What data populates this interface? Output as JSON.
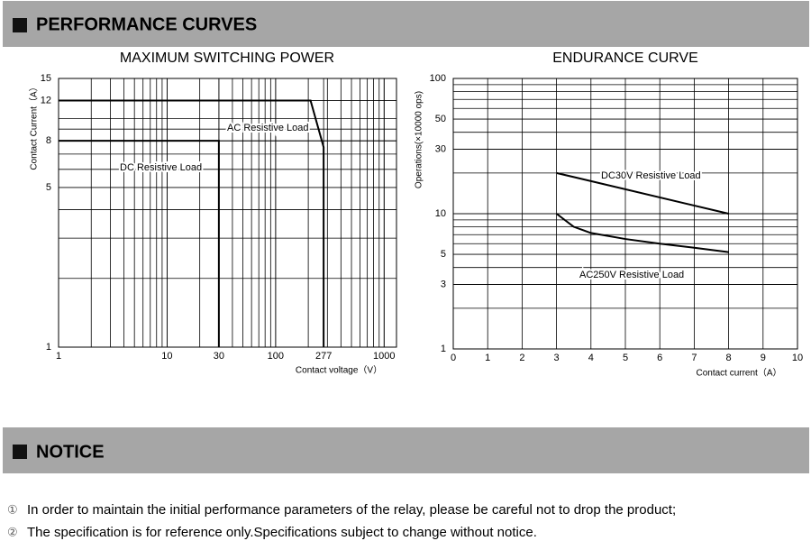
{
  "header": {
    "title": "PERFORMANCE CURVES"
  },
  "chart_data": [
    {
      "type": "line",
      "title": "MAXIMUM SWITCHING POWER",
      "x_label": "Contact voltage（V）",
      "y_label": "Contact Current（A）",
      "x_scale": "log",
      "y_scale": "log",
      "xlim": [
        1,
        1300
      ],
      "ylim": [
        1,
        15
      ],
      "xticks": [
        1,
        10,
        30,
        100,
        277,
        1000
      ],
      "yticks": [
        1,
        5,
        8,
        12,
        15
      ],
      "grid": true,
      "series": [
        {
          "name": "DC Resistive Load",
          "color": "#000000",
          "x": [
            1,
            30,
            30
          ],
          "values": [
            8,
            8,
            1
          ]
        },
        {
          "name": "AC Resistive Load",
          "color": "#000000",
          "x": [
            1,
            210,
            277,
            277
          ],
          "values": [
            12,
            12,
            7.5,
            1
          ]
        }
      ]
    },
    {
      "type": "line",
      "title": "ENDURANCE CURVE",
      "x_label": "Contact current（A）",
      "y_label": "Operations(×10000 ops)",
      "x_scale": "linear",
      "y_scale": "log",
      "xlim": [
        0,
        10
      ],
      "ylim": [
        1,
        100
      ],
      "xticks": [
        0,
        1,
        2,
        3,
        4,
        5,
        6,
        7,
        8,
        9,
        10
      ],
      "yticks": [
        1,
        3,
        5,
        10,
        30,
        50,
        100
      ],
      "grid": true,
      "series": [
        {
          "name": "DC30V  Resistive Load",
          "color": "#000000",
          "x": [
            3,
            8
          ],
          "values": [
            20,
            10
          ]
        },
        {
          "name": "AC250V  Resistive Load",
          "color": "#000000",
          "x": [
            3,
            3.5,
            4,
            5,
            6,
            7,
            8
          ],
          "values": [
            10,
            8,
            7.2,
            6.5,
            6,
            5.6,
            5.2
          ]
        }
      ]
    }
  ],
  "notice": {
    "title": "NOTICE",
    "items": [
      {
        "number": "①",
        "text": "In order to maintain the initial performance parameters of the relay, please be careful not to drop the product;"
      },
      {
        "number": "②",
        "text": "The specification is for reference only.Specifications subject to change without notice."
      }
    ]
  }
}
